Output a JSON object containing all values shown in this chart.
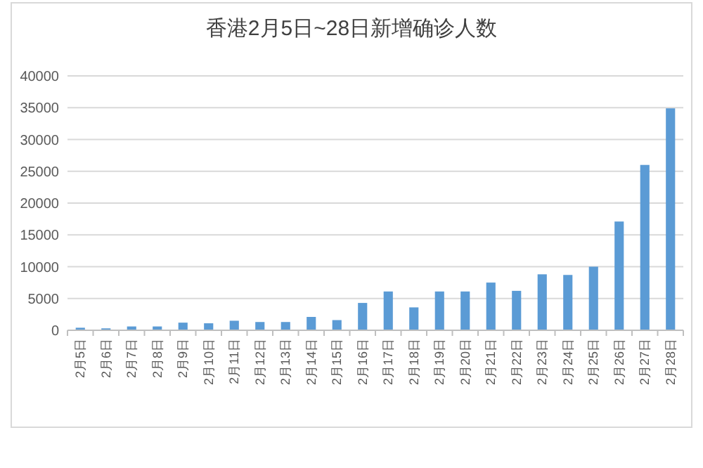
{
  "chart_data": {
    "type": "bar",
    "title": "香港2月5日~28日新增确诊人数",
    "categories": [
      "2月5日",
      "2月6日",
      "2月7日",
      "2月8日",
      "2月9日",
      "2月10日",
      "2月11日",
      "2月12日",
      "2月13日",
      "2月14日",
      "2月15日",
      "2月16日",
      "2月17日",
      "2月18日",
      "2月19日",
      "2月20日",
      "2月21日",
      "2月22日",
      "2月23日",
      "2月24日",
      "2月25日",
      "2月26日",
      "2月27日",
      "2月28日"
    ],
    "values": [
      400,
      300,
      600,
      600,
      1200,
      1100,
      1500,
      1300,
      1300,
      2100,
      1600,
      4300,
      6100,
      3600,
      6100,
      6100,
      7500,
      6200,
      8800,
      8700,
      10000,
      17100,
      26000,
      34900
    ],
    "color": "#5b9bd5",
    "ylim": [
      0,
      40000
    ],
    "yticks": [
      0,
      5000,
      10000,
      15000,
      20000,
      25000,
      30000,
      35000,
      40000
    ],
    "grid": "y"
  }
}
